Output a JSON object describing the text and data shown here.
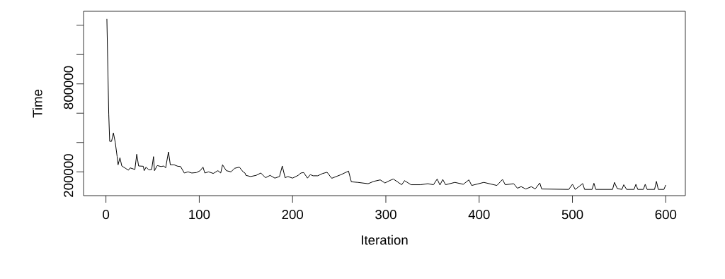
{
  "chart_data": {
    "type": "line",
    "xlabel": "Iteration",
    "ylabel": "Time",
    "xlim": [
      -24,
      621
    ],
    "ylim": [
      37600,
      1295000
    ],
    "xticks": [
      0,
      100,
      200,
      300,
      400,
      500,
      600
    ],
    "yticks": [
      {
        "value": 200000,
        "label": "200000"
      },
      {
        "value": 400000,
        "label": null
      },
      {
        "value": 600000,
        "label": null
      },
      {
        "value": 800000,
        "label": "800000"
      },
      {
        "value": 1000000,
        "label": null
      },
      {
        "value": 1200000,
        "label": null
      }
    ],
    "series": [
      {
        "color": "#000000",
        "x": [
          1,
          3,
          4,
          6,
          8,
          10,
          12,
          13,
          15,
          17,
          21,
          24,
          26,
          31,
          33,
          35,
          40,
          41,
          43,
          46,
          49,
          51,
          52,
          55,
          59,
          62,
          64,
          67,
          69,
          73,
          77,
          80,
          84,
          88,
          92,
          97,
          101,
          104,
          106,
          110,
          115,
          120,
          123,
          125,
          129,
          134,
          138,
          143,
          147,
          149,
          150,
          155,
          161,
          166,
          171,
          176,
          181,
          186,
          189,
          192,
          195,
          200,
          206,
          209,
          212,
          216,
          219,
          222,
          227,
          232,
          237,
          242,
          252,
          260,
          263,
          270,
          281,
          287,
          294,
          299,
          304,
          308,
          317,
          320,
          327,
          337,
          345,
          351,
          355,
          358,
          361,
          364,
          374,
          383,
          389,
          392,
          405,
          419,
          425,
          428,
          437,
          441,
          445,
          450,
          456,
          460,
          465,
          467,
          496,
          500,
          503,
          511,
          513,
          521,
          523,
          525,
          543,
          545,
          548,
          553,
          555,
          558,
          566,
          568,
          570,
          576,
          578,
          580,
          588,
          590,
          592,
          598,
          600
        ],
        "values": [
          1243000,
          593000,
          408000,
          408000,
          465000,
          400000,
          304000,
          248000,
          296000,
          240000,
          224000,
          211000,
          227000,
          216000,
          320000,
          240000,
          238000,
          208000,
          232000,
          213000,
          216000,
          304000,
          208000,
          243000,
          236000,
          240000,
          227000,
          336000,
          248000,
          248000,
          238000,
          236000,
          192000,
          200000,
          192000,
          195000,
          208000,
          232000,
          192000,
          200000,
          189000,
          208000,
          192000,
          248000,
          208000,
          200000,
          224000,
          232000,
          200000,
          192000,
          176000,
          168000,
          176000,
          192000,
          160000,
          176000,
          157000,
          168000,
          240000,
          160000,
          168000,
          157000,
          176000,
          192000,
          195000,
          157000,
          181000,
          173000,
          173000,
          188000,
          197000,
          156000,
          181000,
          205000,
          132000,
          128000,
          119000,
          135000,
          145000,
          124000,
          140000,
          151000,
          112000,
          140000,
          112000,
          112000,
          119000,
          112000,
          151000,
          110000,
          148000,
          112000,
          128000,
          115000,
          145000,
          107000,
          128000,
          107000,
          148000,
          112000,
          119000,
          88000,
          99000,
          83000,
          99000,
          83000,
          124000,
          83000,
          80000,
          115000,
          80000,
          120000,
          80000,
          80000,
          122000,
          80000,
          80000,
          128000,
          86000,
          80000,
          112000,
          80000,
          80000,
          115000,
          80000,
          80000,
          115000,
          80000,
          80000,
          135000,
          80000,
          80000,
          110000
        ]
      }
    ]
  }
}
